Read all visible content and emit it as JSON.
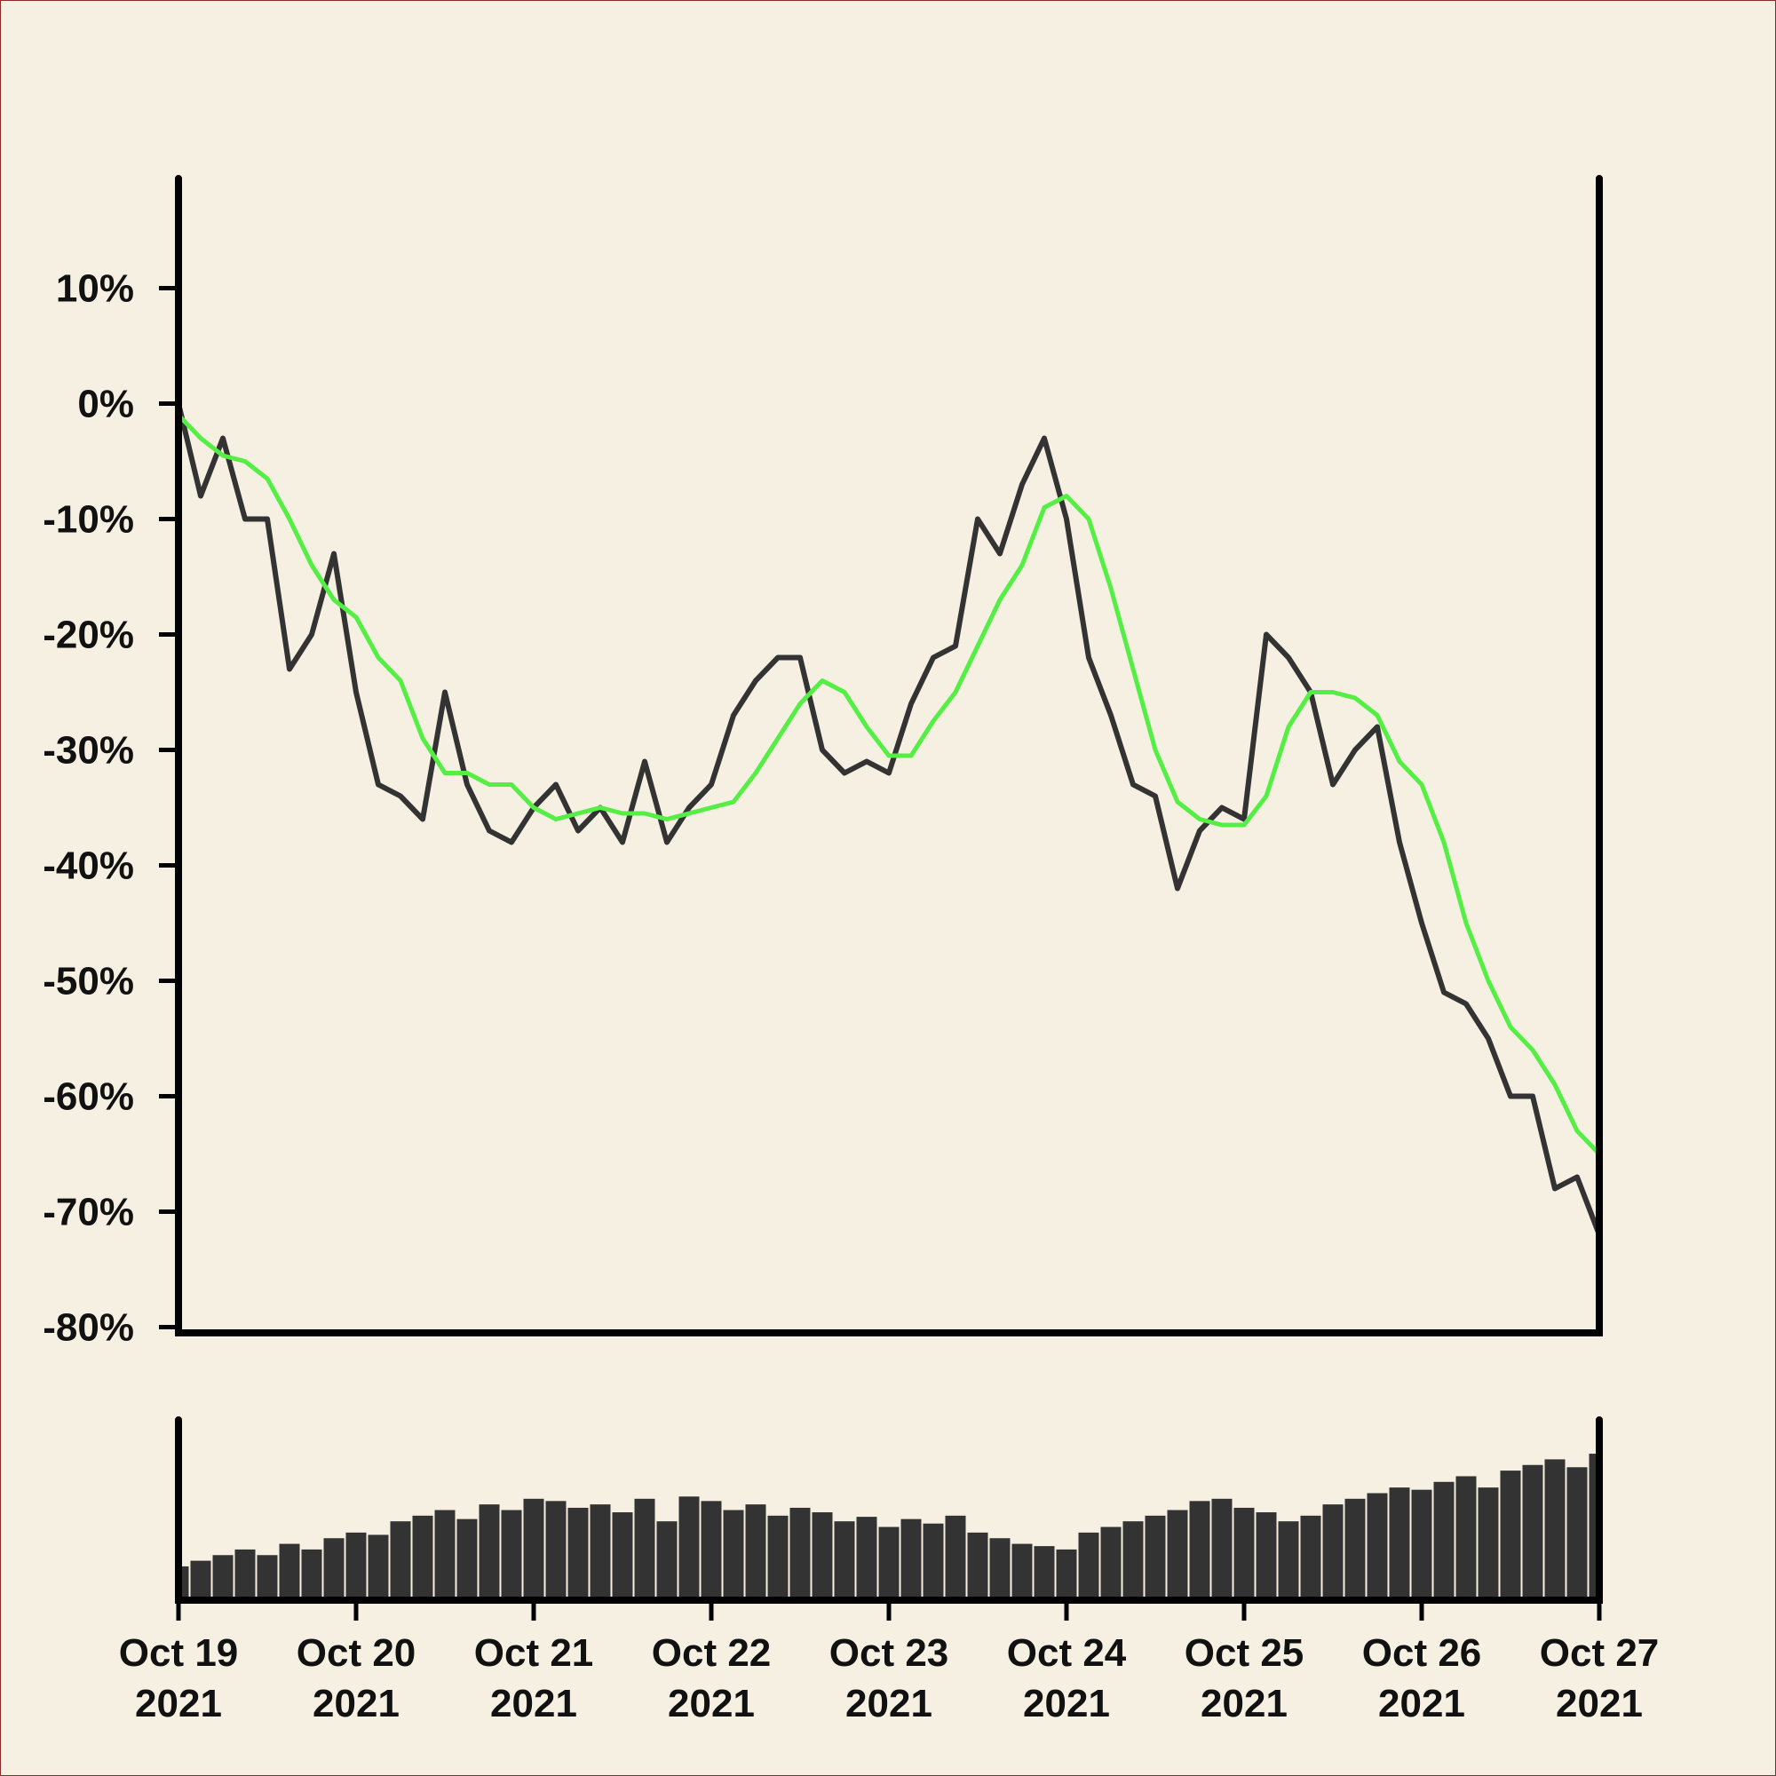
{
  "chart_data": [
    {
      "type": "line",
      "xlim": [
        "2021-10-19T00:00",
        "2021-10-27T00:00"
      ],
      "x": [
        "2021-10-19T00:00",
        "2021-10-19T03:00",
        "2021-10-19T06:00",
        "2021-10-19T09:00",
        "2021-10-19T12:00",
        "2021-10-19T15:00",
        "2021-10-19T18:00",
        "2021-10-19T21:00",
        "2021-10-20T00:00",
        "2021-10-20T03:00",
        "2021-10-20T06:00",
        "2021-10-20T09:00",
        "2021-10-20T12:00",
        "2021-10-20T15:00",
        "2021-10-20T18:00",
        "2021-10-20T21:00",
        "2021-10-21T00:00",
        "2021-10-21T03:00",
        "2021-10-21T06:00",
        "2021-10-21T09:00",
        "2021-10-21T12:00",
        "2021-10-21T15:00",
        "2021-10-21T18:00",
        "2021-10-21T21:00",
        "2021-10-22T00:00",
        "2021-10-22T03:00",
        "2021-10-22T06:00",
        "2021-10-22T09:00",
        "2021-10-22T12:00",
        "2021-10-22T15:00",
        "2021-10-22T18:00",
        "2021-10-22T21:00",
        "2021-10-23T00:00",
        "2021-10-23T03:00",
        "2021-10-23T06:00",
        "2021-10-23T09:00",
        "2021-10-23T12:00",
        "2021-10-23T15:00",
        "2021-10-23T18:00",
        "2021-10-23T21:00",
        "2021-10-24T00:00",
        "2021-10-24T03:00",
        "2021-10-24T06:00",
        "2021-10-24T09:00",
        "2021-10-24T12:00",
        "2021-10-24T15:00",
        "2021-10-24T18:00",
        "2021-10-24T21:00",
        "2021-10-25T00:00",
        "2021-10-25T03:00",
        "2021-10-25T06:00",
        "2021-10-25T09:00",
        "2021-10-25T12:00",
        "2021-10-25T15:00",
        "2021-10-25T18:00",
        "2021-10-25T21:00",
        "2021-10-26T00:00",
        "2021-10-26T03:00",
        "2021-10-26T06:00",
        "2021-10-26T09:00",
        "2021-10-26T12:00",
        "2021-10-26T15:00",
        "2021-10-26T18:00",
        "2021-10-26T21:00",
        "2021-10-27T00:00"
      ],
      "series": [
        {
          "color": "#333333",
          "values": [
            0,
            -8,
            -3,
            -10,
            -10,
            -23,
            -20,
            -13,
            -25,
            -33,
            -34,
            -36,
            -25,
            -33,
            -37,
            -38,
            -35,
            -33,
            -37,
            -35,
            -38,
            -31,
            -38,
            -35,
            -33,
            -27,
            -24,
            -22,
            -22,
            -30,
            -32,
            -31,
            -32,
            -26,
            -22,
            -21,
            -10,
            -13,
            -7,
            -3,
            -10,
            -22,
            -27,
            -33,
            -34,
            -42,
            -37,
            -35,
            -36,
            -20,
            -22,
            -25,
            -33,
            -30,
            -28,
            -38,
            -45,
            -51,
            -52,
            -55,
            -60,
            -60,
            -68,
            -67,
            -72
          ]
        },
        {
          "color": "#55ee44",
          "values": [
            -1,
            -3,
            -4.5,
            -5,
            -6.5,
            -10,
            -14,
            -17,
            -18.5,
            -22,
            -24,
            -29,
            -32,
            -32,
            -33,
            -33,
            -35,
            -36,
            -35.5,
            -35,
            -35.5,
            -35.5,
            -36,
            -35.5,
            -35,
            -34.5,
            -32,
            -29,
            -26,
            -24,
            -25,
            -28,
            -30.5,
            -30.5,
            -27.5,
            -25,
            -21,
            -17,
            -14,
            -9,
            -8,
            -10,
            -16,
            -23,
            -30,
            -34.5,
            -36,
            -36.5,
            -36.5,
            -34,
            -28,
            -25,
            -25,
            -25.5,
            -27,
            -31,
            -33,
            -38,
            -45,
            -50,
            -54,
            -56,
            -59,
            -63,
            -65
          ]
        }
      ],
      "ylim": [
        -80.5,
        19.5
      ],
      "yticks": [
        {
          "value": 10,
          "label": "10%"
        },
        {
          "value": 0,
          "label": "0%"
        },
        {
          "value": -10,
          "label": "-10%"
        },
        {
          "value": -20,
          "label": "-20%"
        },
        {
          "value": -30,
          "label": "-30%"
        },
        {
          "value": -40,
          "label": "-40%"
        },
        {
          "value": -50,
          "label": "-50%"
        },
        {
          "value": -60,
          "label": "-60%"
        },
        {
          "value": -70,
          "label": "-70%"
        },
        {
          "value": -80,
          "label": "-80%"
        }
      ]
    },
    {
      "type": "bar",
      "color": "#333333",
      "xlim": [
        "2021-10-19T00:00",
        "2021-10-27T00:00"
      ],
      "values": [
        30,
        35,
        40,
        45,
        40,
        50,
        45,
        55,
        60,
        58,
        70,
        75,
        80,
        72,
        85,
        80,
        90,
        88,
        82,
        85,
        78,
        90,
        70,
        92,
        88,
        80,
        85,
        75,
        82,
        78,
        70,
        74,
        65,
        72,
        68,
        75,
        60,
        55,
        50,
        48,
        45,
        60,
        65,
        70,
        75,
        80,
        88,
        90,
        82,
        78,
        70,
        75,
        85,
        90,
        95,
        100,
        98,
        105,
        110,
        100,
        115,
        120,
        125,
        118,
        130
      ],
      "ylim": [
        0,
        160
      ],
      "xticks": [
        {
          "value": "2021-10-19T00:00",
          "label": "Oct 19\n2021"
        },
        {
          "value": "2021-10-20T00:00",
          "label": "Oct 20\n2021"
        },
        {
          "value": "2021-10-21T00:00",
          "label": "Oct 21\n2021"
        },
        {
          "value": "2021-10-22T00:00",
          "label": "Oct 22\n2021"
        },
        {
          "value": "2021-10-23T00:00",
          "label": "Oct 23\n2021"
        },
        {
          "value": "2021-10-24T00:00",
          "label": "Oct 24\n2021"
        },
        {
          "value": "2021-10-25T00:00",
          "label": "Oct 25\n2021"
        },
        {
          "value": "2021-10-26T00:00",
          "label": "Oct 26\n2021"
        },
        {
          "value": "2021-10-27T00:00",
          "label": "Oct 27\n2021"
        }
      ]
    }
  ]
}
